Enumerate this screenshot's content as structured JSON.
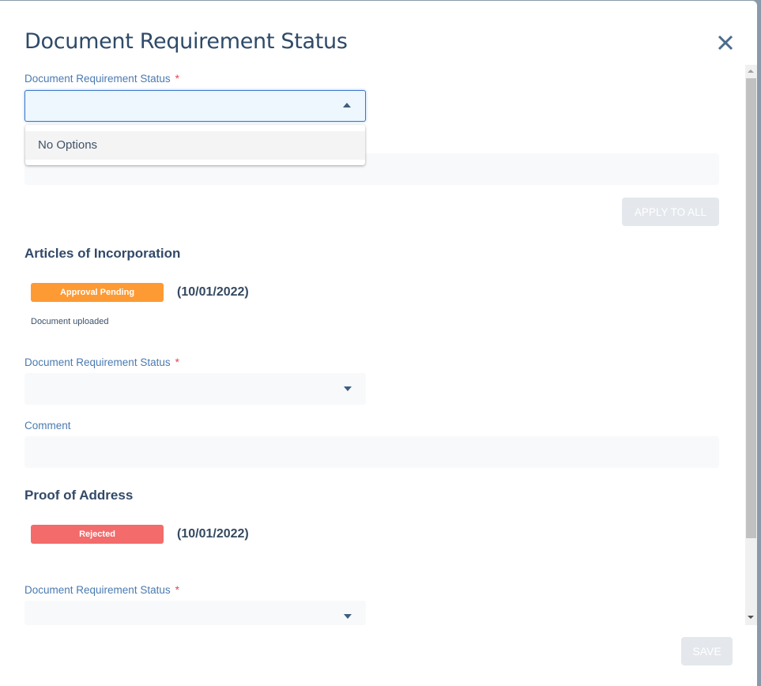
{
  "modal": {
    "title": "Document Requirement Status",
    "close_icon": "close-icon"
  },
  "bulk": {
    "status_label": "Document Requirement Status",
    "required_mark": "*",
    "dropdown_option": "No Options",
    "apply_label": "APPLY TO ALL"
  },
  "documents": [
    {
      "name": "Articles of Incorporation",
      "badge": "Approval Pending",
      "badge_color": "#fd9a34",
      "date": "(10/01/2022)",
      "note": "Document uploaded",
      "status_label": "Document Requirement Status",
      "required_mark": "*",
      "comment_label": "Comment"
    },
    {
      "name": "Proof of Address",
      "badge": "Rejected",
      "badge_color": "#f36b6b",
      "date": "(10/01/2022)",
      "status_label": "Document Requirement Status",
      "required_mark": "*"
    }
  ],
  "footer": {
    "save_label": "SAVE"
  }
}
